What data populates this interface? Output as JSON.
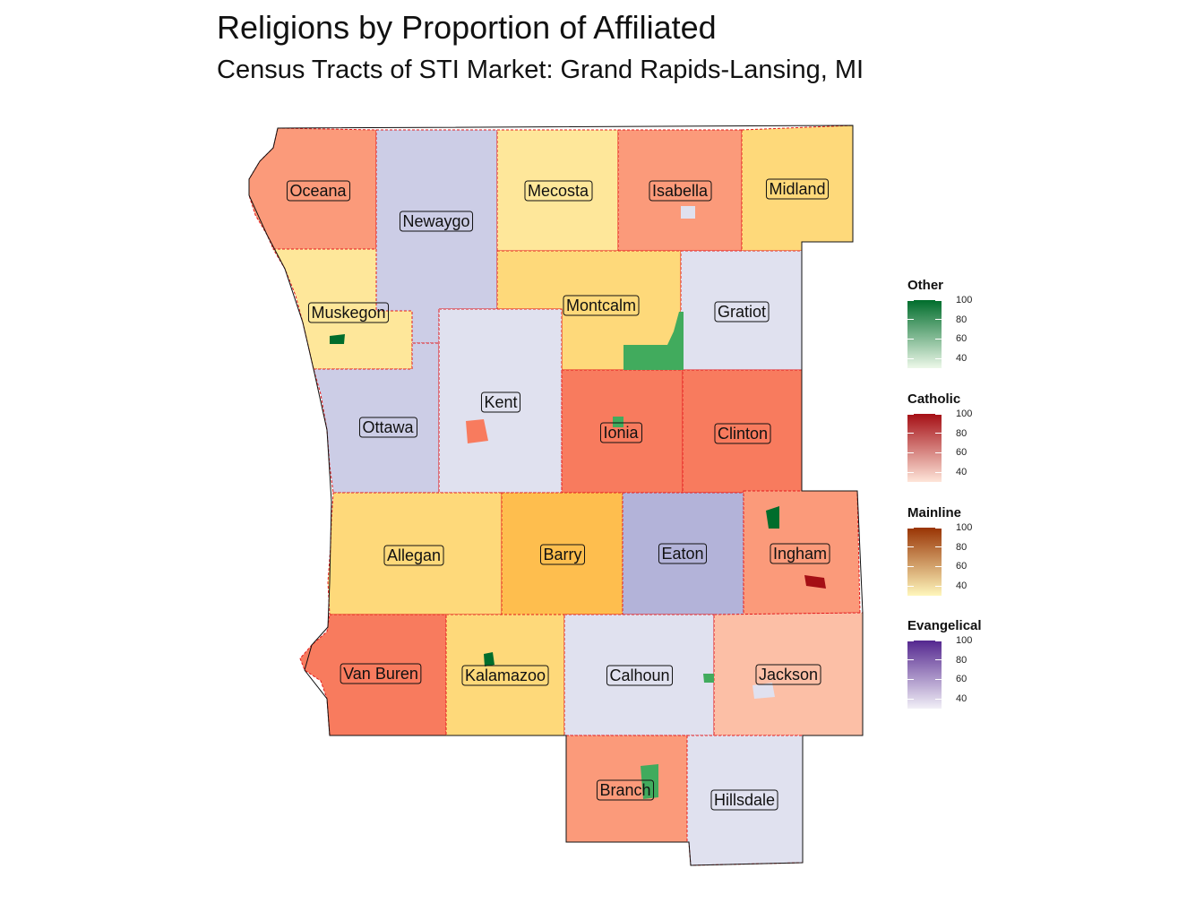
{
  "title": "Religions by Proportion of Affiliated",
  "subtitle": "Census Tracts of STI Market: Grand Rapids-Lansing, MI",
  "colors": {
    "catholic": "#fb9a7a",
    "catholic_strong": "#f87b5e",
    "catholic_light": "#fcbfa6",
    "mainline": "#fee79a",
    "mainline_mid": "#fed97a",
    "mainline_strong": "#febe4e",
    "evangelical": "#cccde6",
    "evangelical_light": "#e0e1ef",
    "evangelical_mid": "#b3b3d9",
    "other_green": "#41ab5d",
    "other_dark": "#006d2c",
    "catholic_dark": "#a50f15",
    "county_border": "#e41a1c"
  },
  "counties": [
    {
      "name": "Oceana",
      "religion": "Catholic",
      "shade": "catholic"
    },
    {
      "name": "Newaygo",
      "religion": "Evangelical",
      "shade": "evangelical"
    },
    {
      "name": "Mecosta",
      "religion": "Mainline",
      "shade": "mainline"
    },
    {
      "name": "Isabella",
      "religion": "Catholic",
      "shade": "catholic"
    },
    {
      "name": "Midland",
      "religion": "Mainline",
      "shade": "mainline_mid"
    },
    {
      "name": "Muskegon",
      "religion": "Mainline",
      "shade": "mainline"
    },
    {
      "name": "Montcalm",
      "religion": "Mainline",
      "shade": "mainline_mid"
    },
    {
      "name": "Gratiot",
      "religion": "Evangelical",
      "shade": "evangelical_light"
    },
    {
      "name": "Ottawa",
      "religion": "Evangelical",
      "shade": "evangelical"
    },
    {
      "name": "Kent",
      "religion": "Evangelical",
      "shade": "evangelical_light"
    },
    {
      "name": "Ionia",
      "religion": "Catholic",
      "shade": "catholic_strong"
    },
    {
      "name": "Clinton",
      "religion": "Catholic",
      "shade": "catholic_strong"
    },
    {
      "name": "Allegan",
      "religion": "Mainline",
      "shade": "mainline_mid"
    },
    {
      "name": "Barry",
      "religion": "Mainline",
      "shade": "mainline_strong"
    },
    {
      "name": "Eaton",
      "religion": "Evangelical",
      "shade": "evangelical_mid"
    },
    {
      "name": "Ingham",
      "religion": "Catholic",
      "shade": "catholic"
    },
    {
      "name": "Van Buren",
      "religion": "Catholic",
      "shade": "catholic_strong"
    },
    {
      "name": "Kalamazoo",
      "religion": "Mainline",
      "shade": "mainline_mid"
    },
    {
      "name": "Calhoun",
      "religion": "Evangelical",
      "shade": "evangelical_light"
    },
    {
      "name": "Jackson",
      "religion": "Catholic",
      "shade": "catholic_light"
    },
    {
      "name": "Branch",
      "religion": "Catholic",
      "shade": "catholic"
    },
    {
      "name": "Hillsdale",
      "religion": "Evangelical",
      "shade": "evangelical_light"
    }
  ],
  "legends": [
    {
      "title": "Other",
      "color_low": "#edf8e9",
      "color_high": "#006d2c",
      "ticks": [
        100,
        80,
        60,
        40
      ],
      "range": [
        30,
        100
      ]
    },
    {
      "title": "Catholic",
      "color_low": "#fee5d9",
      "color_high": "#a50f15",
      "ticks": [
        100,
        80,
        60,
        40
      ],
      "range": [
        30,
        100
      ]
    },
    {
      "title": "Mainline",
      "color_low": "#fff7bc",
      "color_high": "#993404",
      "ticks": [
        100,
        80,
        60,
        40
      ],
      "range": [
        30,
        100
      ]
    },
    {
      "title": "Evangelical",
      "color_low": "#f2f0f7",
      "color_high": "#54278f",
      "ticks": [
        100,
        80,
        60,
        40
      ],
      "range": [
        30,
        100
      ]
    }
  ]
}
